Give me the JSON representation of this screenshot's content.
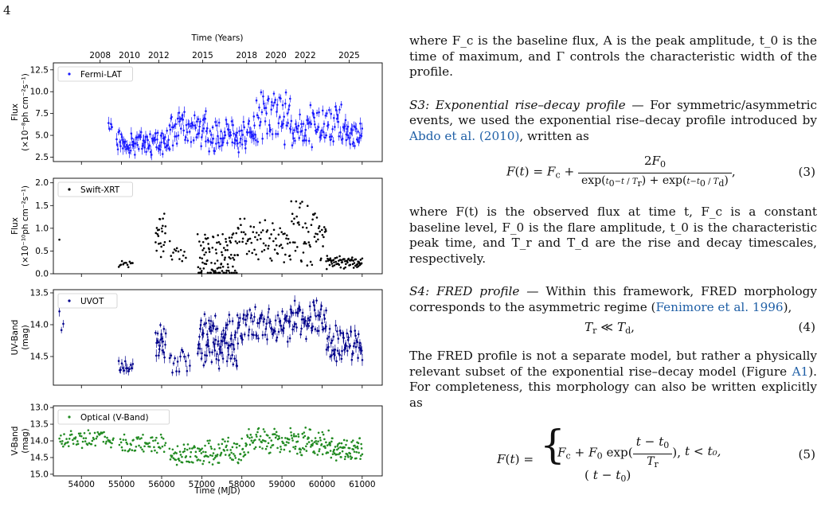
{
  "page": {
    "number": "4"
  },
  "figure": {
    "top_axis_label": "Time (Years)",
    "year_ticks": [
      {
        "label": "2008",
        "mjd": 54466
      },
      {
        "label": "2010",
        "mjd": 55197
      },
      {
        "label": "2012",
        "mjd": 55927
      },
      {
        "label": "2015",
        "mjd": 57023
      },
      {
        "label": "2018",
        "mjd": 58119
      },
      {
        "label": "2020",
        "mjd": 58849
      },
      {
        "label": "2022",
        "mjd": 59580
      },
      {
        "label": "2025",
        "mjd": 60676
      }
    ],
    "bottom_axis_label": "Time (MJD)"
  },
  "chart_data": [
    {
      "type": "scatter",
      "legend": "Fermi-LAT",
      "ylabel_line1": "Flux",
      "ylabel_line2": "(×10⁻⁸ph cm⁻²s⁻¹)",
      "ylim": [
        2.0,
        13.3
      ],
      "yticks": [
        "2.5",
        "5.0",
        "7.5",
        "10.0",
        "12.5"
      ],
      "ytick_values": [
        2.5,
        5.0,
        7.5,
        10.0,
        12.5
      ],
      "inverted": false,
      "color": "#1a1aff",
      "errorbars": true,
      "segments": [
        {
          "start": 54680,
          "end": 54760,
          "n": 4,
          "base": 6.2,
          "amp": 0.8
        },
        {
          "start": 54880,
          "end": 56200,
          "n": 85,
          "base": 4.2,
          "amp": 1.5
        },
        {
          "start": 56200,
          "end": 57100,
          "n": 55,
          "base": 5.8,
          "amp": 2.2
        },
        {
          "start": 57100,
          "end": 58300,
          "n": 70,
          "base": 5.0,
          "amp": 2.0
        },
        {
          "start": 58300,
          "end": 59200,
          "n": 55,
          "base": 7.2,
          "amp": 3.4
        },
        {
          "start": 59200,
          "end": 60600,
          "n": 80,
          "base": 6.0,
          "amp": 2.6
        },
        {
          "start": 60600,
          "end": 61000,
          "n": 25,
          "base": 5.0,
          "amp": 1.4
        }
      ],
      "xlim": [
        53300,
        61500
      ]
    },
    {
      "type": "scatter",
      "legend": "Swift-XRT",
      "ylabel_line1": "Flux",
      "ylabel_line2": "(×10⁻¹⁰ph cm⁻²s⁻¹)",
      "ylim": [
        0.0,
        2.1
      ],
      "yticks": [
        "0.0",
        "0.5",
        "1.0",
        "1.5",
        "2.0"
      ],
      "ytick_values": [
        0.0,
        0.5,
        1.0,
        1.5,
        2.0
      ],
      "inverted": false,
      "color": "#000000",
      "errorbars": false,
      "segments": [
        {
          "start": 53450,
          "end": 53470,
          "n": 1,
          "base": 0.75,
          "amp": 0.0
        },
        {
          "start": 54930,
          "end": 55280,
          "n": 14,
          "base": 0.22,
          "amp": 0.08
        },
        {
          "start": 55850,
          "end": 56100,
          "n": 24,
          "base": 0.8,
          "amp": 0.6
        },
        {
          "start": 56200,
          "end": 56600,
          "n": 14,
          "base": 0.45,
          "amp": 0.35
        },
        {
          "start": 56900,
          "end": 57900,
          "n": 110,
          "base": 0.35,
          "amp": 0.7
        },
        {
          "start": 57900,
          "end": 59200,
          "n": 70,
          "base": 0.75,
          "amp": 0.5
        },
        {
          "start": 59200,
          "end": 60100,
          "n": 60,
          "base": 0.9,
          "amp": 0.8
        },
        {
          "start": 60100,
          "end": 61000,
          "n": 70,
          "base": 0.25,
          "amp": 0.15
        }
      ],
      "xlim": [
        53300,
        61500
      ]
    },
    {
      "type": "scatter",
      "legend": "UVOT",
      "ylabel_line1": "UV-Band",
      "ylabel_line2": "(mag)",
      "ylim": [
        13.45,
        14.95
      ],
      "yticks": [
        "13.5",
        "14.0",
        "14.5"
      ],
      "ytick_values": [
        13.5,
        14.0,
        14.5
      ],
      "inverted": true,
      "color": "#00008b",
      "errorbars": true,
      "segments": [
        {
          "start": 53450,
          "end": 53550,
          "n": 3,
          "base": 13.95,
          "amp": 0.2
        },
        {
          "start": 54930,
          "end": 55280,
          "n": 14,
          "base": 14.65,
          "amp": 0.1
        },
        {
          "start": 55850,
          "end": 56100,
          "n": 20,
          "base": 14.25,
          "amp": 0.3
        },
        {
          "start": 56200,
          "end": 56700,
          "n": 16,
          "base": 14.6,
          "amp": 0.25
        },
        {
          "start": 56900,
          "end": 57900,
          "n": 95,
          "base": 14.25,
          "amp": 0.45
        },
        {
          "start": 57900,
          "end": 59200,
          "n": 70,
          "base": 14.0,
          "amp": 0.3
        },
        {
          "start": 59200,
          "end": 60100,
          "n": 55,
          "base": 13.9,
          "amp": 0.35
        },
        {
          "start": 60100,
          "end": 61000,
          "n": 60,
          "base": 14.3,
          "amp": 0.3
        }
      ],
      "xlim": [
        53300,
        61500
      ]
    },
    {
      "type": "scatter",
      "legend": "Optical (V-Band)",
      "ylabel_line1": "V-Band",
      "ylabel_line2": "(mag)",
      "ylim": [
        12.95,
        15.05
      ],
      "yticks": [
        "13.0",
        "13.5",
        "14.0",
        "14.5",
        "15.0"
      ],
      "ytick_values": [
        13.0,
        13.5,
        14.0,
        14.5,
        15.0
      ],
      "inverted": true,
      "color": "#228b22",
      "errorbars": false,
      "segments": [
        {
          "start": 53450,
          "end": 54800,
          "n": 70,
          "base": 13.95,
          "amp": 0.3
        },
        {
          "start": 54950,
          "end": 56100,
          "n": 60,
          "base": 14.05,
          "amp": 0.35
        },
        {
          "start": 56200,
          "end": 57100,
          "n": 60,
          "base": 14.4,
          "amp": 0.35
        },
        {
          "start": 57100,
          "end": 58100,
          "n": 70,
          "base": 14.3,
          "amp": 0.45
        },
        {
          "start": 58100,
          "end": 59300,
          "n": 80,
          "base": 14.0,
          "amp": 0.4
        },
        {
          "start": 59300,
          "end": 60200,
          "n": 70,
          "base": 14.05,
          "amp": 0.45
        },
        {
          "start": 60200,
          "end": 61000,
          "n": 70,
          "base": 14.25,
          "amp": 0.35
        }
      ],
      "xticks": [
        "54000",
        "55000",
        "56000",
        "57000",
        "58000",
        "59000",
        "60000",
        "61000"
      ],
      "xtick_values": [
        54000,
        55000,
        56000,
        57000,
        58000,
        59000,
        60000,
        61000
      ],
      "xlim": [
        53300,
        61500
      ]
    }
  ],
  "text": {
    "p1": "where F_c is the baseline flux, A is the peak amplitude, t_0 is the time of maximum, and Γ controls the characteristic width of the profile.",
    "s3_head": "S3:    Exponential rise–decay profile —",
    "s3_body_a": " For symmetric/asymmetric events, we used the exponential rise–decay profile introduced by ",
    "s3_cite": "Abdo et al. (2010)",
    "s3_body_b": ", written as",
    "eq3_num": "(3)",
    "p3_a": "where F(t) is the observed flux at time t, F",
    "p3_full": "where F(t) is the observed flux at time t, F_c is a constant baseline level, F_0 is the flare amplitude, t_0 is the characteristic peak time, and T_r and T_d are the rise and decay timescales, respectively.",
    "s4_head": "S4: FRED profile —",
    "s4_body_a": " Within this framework, FRED morphology corresponds to the asymmetric regime (",
    "s4_cite": "Fenimore et al. 1996",
    "s4_body_b": "),",
    "eq4_num": "(4)",
    "p5_a": "The FRED profile is not a separate model, but rather a physically relevant subset of the exponential rise–decay model (Figure ",
    "p5_link": "A1",
    "p5_b": ").  For completeness, this morphology can also be written explicitly as",
    "eq5_num": "(5)",
    "eq5_cond": "t < t₀,"
  }
}
